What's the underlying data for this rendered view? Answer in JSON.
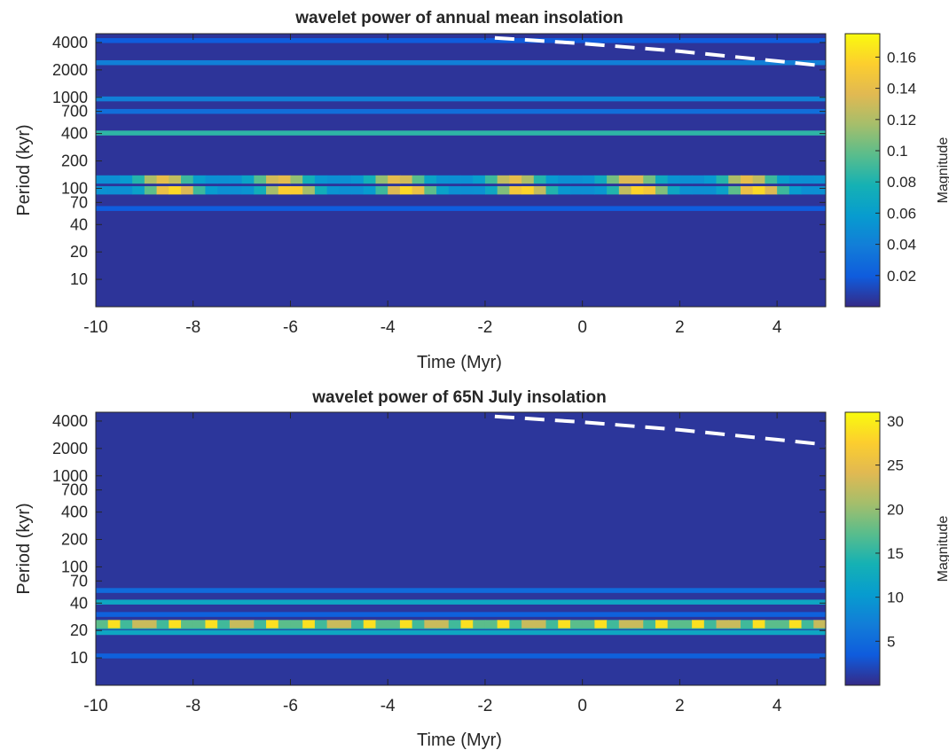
{
  "chart_data": [
    {
      "type": "heatmap",
      "title": "wavelet power of annual mean insolation",
      "xlabel": "Time (Myr)",
      "ylabel": "Period (kyr)",
      "yscale": "log",
      "xlim": [
        -10,
        5
      ],
      "ylim": [
        5,
        5000
      ],
      "xticks": [
        -10,
        -8,
        -6,
        -4,
        -2,
        0,
        2,
        4
      ],
      "xtick_labels": [
        "-10",
        "-8",
        "-6",
        "-4",
        "-2",
        "0",
        "2",
        "4"
      ],
      "yticks": [
        10,
        20,
        40,
        70,
        100,
        200,
        400,
        700,
        1000,
        2000,
        4000
      ],
      "ytick_labels": [
        "10",
        "20",
        "40",
        "70",
        "100",
        "200",
        "400",
        "700",
        "1000",
        "2000",
        "4000"
      ],
      "colorbar": {
        "label": "Magnitude",
        "range": [
          0,
          0.175
        ],
        "ticks": [
          0.02,
          0.04,
          0.06,
          0.08,
          0.1,
          0.12,
          0.14,
          0.16
        ],
        "tick_labels": [
          "0.02",
          "0.04",
          "0.06",
          "0.08",
          "0.1",
          "0.12",
          "0.14",
          "0.16"
        ]
      },
      "colormap": "parula",
      "background_value": 0.004,
      "bands": [
        {
          "period": 4200,
          "magnitude": 0.02
        },
        {
          "period": 2400,
          "magnitude": 0.04
        },
        {
          "period": 960,
          "magnitude": 0.04
        },
        {
          "period": 700,
          "magnitude": 0.03
        },
        {
          "period": 405,
          "magnitude": 0.085
        },
        {
          "period": 60,
          "magnitude": 0.02
        }
      ],
      "modulated_bands": [
        {
          "period": 125,
          "base": 0.05,
          "peak": 0.14,
          "cycle_myr": 2.4,
          "phase_myr": -8.6
        },
        {
          "period": 95,
          "base": 0.05,
          "peak": 0.16,
          "cycle_myr": 2.4,
          "phase_myr": -6.0
        }
      ],
      "cone_of_influence": [
        [
          -1.8,
          4500
        ],
        [
          0,
          3900
        ],
        [
          2,
          3200
        ],
        [
          4,
          2500
        ],
        [
          5,
          2200
        ]
      ]
    },
    {
      "type": "heatmap",
      "title": "wavelet power of 65N July insolation",
      "xlabel": "Time (Myr)",
      "ylabel": "Period (kyr)",
      "yscale": "log",
      "xlim": [
        -10,
        5
      ],
      "ylim": [
        5,
        5000
      ],
      "xticks": [
        -10,
        -8,
        -6,
        -4,
        -2,
        0,
        2,
        4
      ],
      "xtick_labels": [
        "-10",
        "-8",
        "-6",
        "-4",
        "-2",
        "0",
        "2",
        "4"
      ],
      "yticks": [
        10,
        20,
        40,
        70,
        100,
        200,
        400,
        700,
        1000,
        2000,
        4000
      ],
      "ytick_labels": [
        "10",
        "20",
        "40",
        "70",
        "100",
        "200",
        "400",
        "700",
        "1000",
        "2000",
        "4000"
      ],
      "colorbar": {
        "label": "Magnitude",
        "range": [
          0,
          31
        ],
        "ticks": [
          5,
          10,
          15,
          20,
          25,
          30
        ],
        "tick_labels": [
          "5",
          "10",
          "15",
          "20",
          "25",
          "30"
        ]
      },
      "colormap": "parula",
      "background_value": 0.8,
      "bands": [
        {
          "period": 55,
          "magnitude": 5
        },
        {
          "period": 41,
          "magnitude": 12
        },
        {
          "period": 30,
          "magnitude": 4
        },
        {
          "period": 22,
          "magnitude": 14
        },
        {
          "period": 19,
          "magnitude": 12
        },
        {
          "period": 10.5,
          "magnitude": 4
        }
      ],
      "modulated_bands": [
        {
          "period": 23.5,
          "base": 16,
          "peak": 30,
          "cycle_myr": 0.4,
          "phase_myr": -10
        }
      ],
      "cone_of_influence": [
        [
          -1.8,
          4500
        ],
        [
          0,
          3900
        ],
        [
          2,
          3200
        ],
        [
          4,
          2500
        ],
        [
          5,
          2200
        ]
      ]
    }
  ]
}
